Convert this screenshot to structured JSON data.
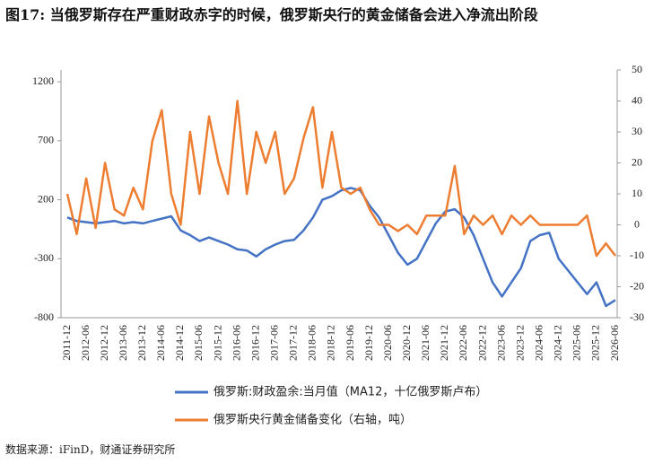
{
  "chart_data": {
    "type": "line",
    "title": "图17: 当俄罗斯存在严重财政赤字的时候，俄罗斯央行的黄金储备会进入净流出阶段",
    "source": "数据来源：iFinD，财通证券研究所",
    "categories": [
      "2011-12",
      null,
      "2012-06",
      null,
      "2012-12",
      null,
      "2013-06",
      null,
      "2013-12",
      null,
      "2014-06",
      null,
      "2014-12",
      null,
      "2015-06",
      null,
      "2015-12",
      null,
      "2016-06",
      null,
      "2016-12",
      null,
      "2017-06",
      null,
      "2017-12",
      null,
      "2018-06",
      null,
      "2018-12",
      null,
      "2019-06",
      null,
      "2019-12",
      null,
      "2020-06",
      null,
      "2020-12",
      null,
      "2021-06",
      null,
      "2021-12",
      null,
      "2022-06",
      null,
      "2022-12",
      null,
      "2023-06",
      null,
      "2023-12",
      null,
      "2024-06",
      null,
      "2024-12",
      null,
      "2025-06",
      null,
      "2025-12",
      null,
      "2026-06"
    ],
    "series": [
      {
        "name": "俄罗斯:财政盈余:当月值（MA12，十亿俄罗斯卢布）",
        "color": "#4472c4",
        "axis": "y",
        "values": [
          50,
          20,
          10,
          0,
          10,
          20,
          0,
          10,
          0,
          20,
          40,
          60,
          -60,
          -100,
          -150,
          -120,
          -150,
          -180,
          -220,
          -230,
          -280,
          -220,
          -180,
          -150,
          -140,
          -60,
          50,
          200,
          230,
          280,
          300,
          280,
          150,
          50,
          -100,
          -250,
          -350,
          -300,
          -150,
          0,
          100,
          120,
          50,
          -100,
          -300,
          -500,
          -620,
          -500,
          -380,
          -150,
          -100,
          -80,
          -300,
          -400,
          -500,
          -600,
          -500,
          -700,
          -650
        ]
      },
      {
        "name": "俄罗斯央行黄金储备变化（右轴，吨）",
        "color": "#ed7d31",
        "axis": "y2",
        "values": [
          10,
          -3,
          15,
          -1,
          20,
          5,
          3,
          12,
          5,
          27,
          37,
          10,
          0,
          30,
          10,
          35,
          20,
          10,
          40,
          10,
          30,
          20,
          30,
          10,
          15,
          28,
          38,
          12,
          30,
          12,
          10,
          12,
          5,
          0,
          0,
          -2,
          0,
          -3,
          3,
          3,
          3,
          19,
          -3,
          3,
          0,
          3,
          -3,
          3,
          0,
          3,
          0,
          0,
          0,
          0,
          0,
          3,
          -10,
          -6,
          -10
        ]
      }
    ],
    "ylim": [
      -800,
      1300
    ],
    "yticks": [
      1200,
      700,
      200,
      -300,
      -800
    ],
    "y2lim": [
      -30,
      50
    ],
    "y2ticks": [
      50,
      40,
      30,
      20,
      10,
      0,
      -10,
      -20,
      -30
    ]
  }
}
